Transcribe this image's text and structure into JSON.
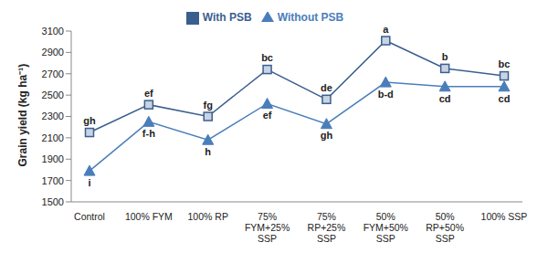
{
  "chart_data": {
    "type": "line",
    "y_label": "Grain yield (kg ha⁻¹)",
    "categories": [
      "Control",
      "100% FYM",
      "100% RP",
      "75% FYM+25% SSP",
      "75% RP+25% SSP",
      "50% FYM+50% SSP",
      "50% RP+50% SSP",
      "100% SSP"
    ],
    "series": [
      {
        "name": "Without PSB",
        "color": "#4a7ebb",
        "marker": "triangle",
        "values": [
          1790,
          2250,
          2080,
          2420,
          2230,
          2620,
          2580,
          2580
        ],
        "annotations": [
          "i",
          "f-h",
          "h",
          "ef",
          "gh",
          "b-d",
          "cd",
          "cd"
        ]
      },
      {
        "name": "With PSB",
        "color": "#3a5f8f",
        "marker": "square",
        "values": [
          2150,
          2410,
          2300,
          2740,
          2460,
          3010,
          2750,
          2680
        ],
        "annotations": [
          "gh",
          "ef",
          "fg",
          "bc",
          "de",
          "a",
          "b",
          "bc"
        ]
      }
    ],
    "ylim": [
      1500,
      3100
    ],
    "yticks": [
      1500,
      1700,
      1900,
      2100,
      2300,
      2500,
      2700,
      2900,
      3100
    ],
    "grid": false,
    "legend": "top"
  }
}
